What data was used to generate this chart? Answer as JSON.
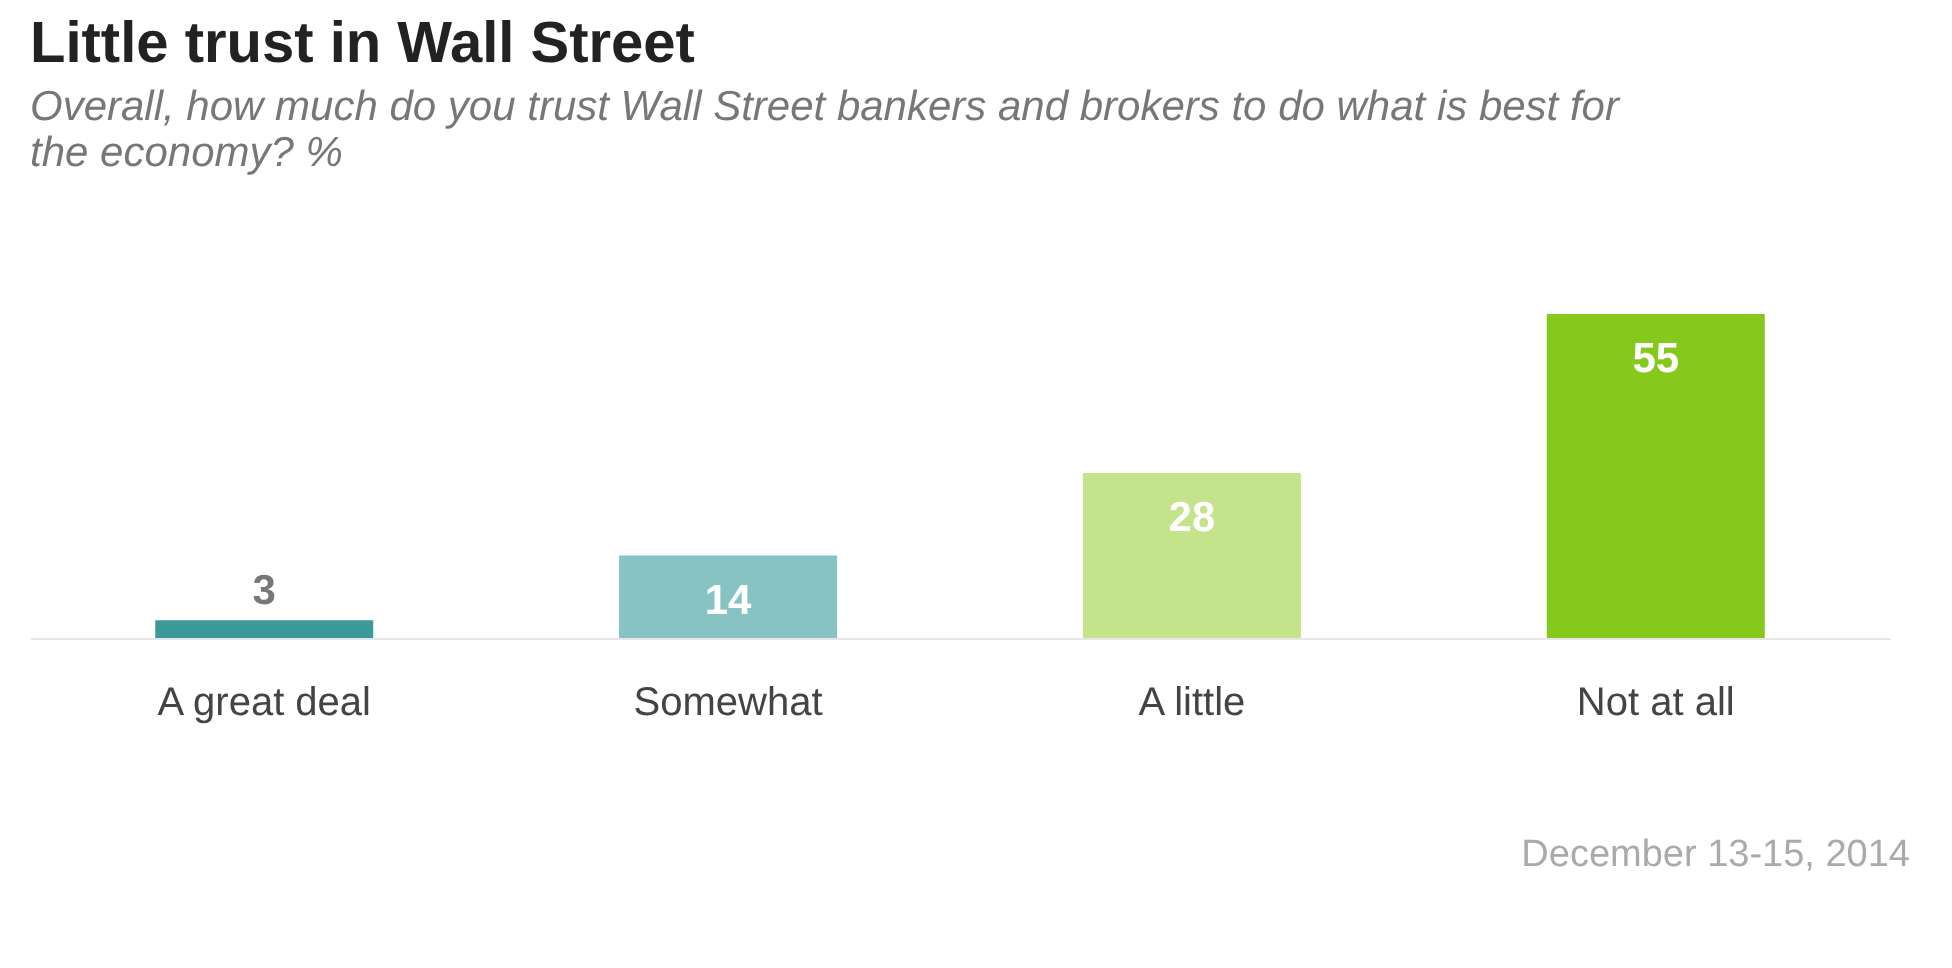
{
  "chart_data": {
    "type": "bar",
    "title": "Little trust in Wall Street",
    "subtitle": "Overall, how much do you trust Wall Street bankers and brokers to do what is best for the economy? %",
    "categories": [
      "A great deal",
      "Somewhat",
      "A little",
      "Not at all"
    ],
    "values": [
      3,
      14,
      28,
      55
    ],
    "colors": [
      "#3a9a9a",
      "#88c3c3",
      "#c4e38a",
      "#84c91b"
    ],
    "data_labels": true,
    "annotations": [
      "December 13-15, 2014"
    ]
  }
}
